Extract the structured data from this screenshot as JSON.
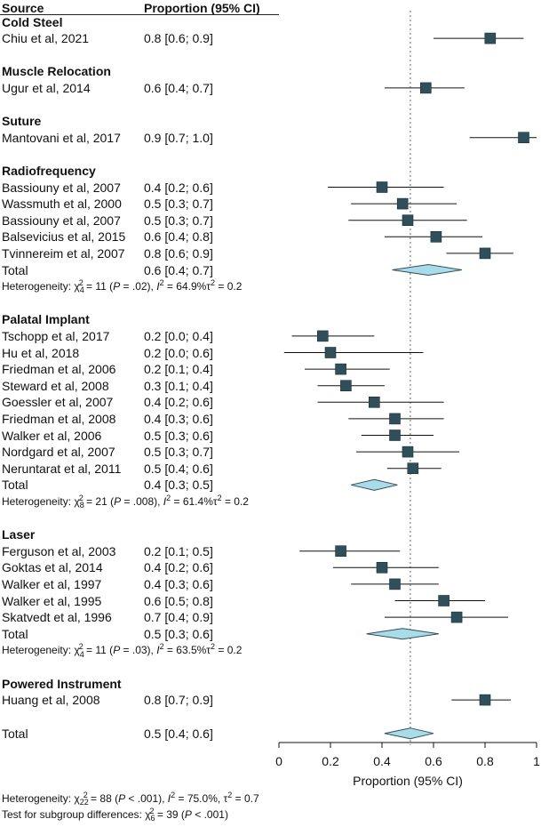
{
  "header": {
    "source_label": "Source",
    "proportion_label": "Proportion (95% CI)"
  },
  "groups": [
    {
      "name": "Cold Steel",
      "studies": [
        {
          "label": "Chiu et al, 2021",
          "ci_text": "0.8 [0.6; 0.9]",
          "est": 0.82,
          "lo": 0.6,
          "hi": 0.95
        }
      ],
      "total": null,
      "heterogeneity": null
    },
    {
      "name": "Muscle Relocation",
      "studies": [
        {
          "label": "Ugur et al, 2014",
          "ci_text": "0.6 [0.4; 0.7]",
          "est": 0.57,
          "lo": 0.41,
          "hi": 0.72
        }
      ],
      "total": null,
      "heterogeneity": null
    },
    {
      "name": "Suture",
      "studies": [
        {
          "label": "Mantovani et al, 2017",
          "ci_text": "0.9 [0.7; 1.0]",
          "est": 0.95,
          "lo": 0.74,
          "hi": 1.0
        }
      ],
      "total": null,
      "heterogeneity": null
    },
    {
      "name": "Radiofrequency",
      "studies": [
        {
          "label": "Bassiouny et al, 2007",
          "ci_text": "0.4 [0.2; 0.6]",
          "est": 0.4,
          "lo": 0.19,
          "hi": 0.64
        },
        {
          "label": "Wassmuth et al, 2000",
          "ci_text": "0.5 [0.3; 0.7]",
          "est": 0.48,
          "lo": 0.28,
          "hi": 0.69
        },
        {
          "label": "Bassiouny et al, 2007",
          "ci_text": "0.5 [0.3; 0.7]",
          "est": 0.5,
          "lo": 0.27,
          "hi": 0.73
        },
        {
          "label": "Balsevicius et al, 2015",
          "ci_text": "0.6 [0.4; 0.8]",
          "est": 0.61,
          "lo": 0.41,
          "hi": 0.79
        },
        {
          "label": "Tvinnereim et al, 2007",
          "ci_text": "0.8 [0.6; 0.9]",
          "est": 0.8,
          "lo": 0.65,
          "hi": 0.91
        }
      ],
      "total": {
        "label": "Total",
        "ci_text": "0.6 [0.4; 0.7]",
        "est": 0.58,
        "lo": 0.44,
        "hi": 0.71
      },
      "heterogeneity": {
        "prefix": "Heterogeneity: χ",
        "df": "4",
        "sq": "2",
        "stat": " = 11 (",
        "p_label": "P",
        "p_text": " = .02), ",
        "i_label": "I",
        "i_text": " = 64.9%τ",
        "tau_text": " = 0.2"
      }
    },
    {
      "name": "Palatal Implant",
      "studies": [
        {
          "label": "Tschopp et al, 2017",
          "ci_text": "0.2 [0.0; 0.4]",
          "est": 0.17,
          "lo": 0.05,
          "hi": 0.37
        },
        {
          "label": "Hu et al, 2018",
          "ci_text": "0.2 [0.0; 0.6]",
          "est": 0.2,
          "lo": 0.02,
          "hi": 0.56
        },
        {
          "label": "Friedman et al, 2006",
          "ci_text": "0.2 [0.1; 0.4]",
          "est": 0.24,
          "lo": 0.1,
          "hi": 0.43
        },
        {
          "label": "Steward et al, 2008",
          "ci_text": "0.3 [0.1; 0.4]",
          "est": 0.26,
          "lo": 0.15,
          "hi": 0.41
        },
        {
          "label": "Goessler et al, 2007",
          "ci_text": "0.4 [0.2; 0.6]",
          "est": 0.37,
          "lo": 0.15,
          "hi": 0.64
        },
        {
          "label": "Friedman et al, 2008",
          "ci_text": "0.4 [0.3; 0.6]",
          "est": 0.45,
          "lo": 0.27,
          "hi": 0.64
        },
        {
          "label": "Walker et al, 2006",
          "ci_text": "0.5 [0.3; 0.6]",
          "est": 0.45,
          "lo": 0.32,
          "hi": 0.6
        },
        {
          "label": "Nordgard et al, 2007",
          "ci_text": "0.5 [0.3; 0.7]",
          "est": 0.5,
          "lo": 0.3,
          "hi": 0.7
        },
        {
          "label": "Neruntarat et al, 2011",
          "ci_text": "0.5 [0.4; 0.6]",
          "est": 0.52,
          "lo": 0.42,
          "hi": 0.63
        }
      ],
      "total": {
        "label": "Total",
        "ci_text": "0.4 [0.3; 0.5]",
        "est": 0.37,
        "lo": 0.28,
        "hi": 0.46
      },
      "heterogeneity": {
        "prefix": "Heterogeneity: χ",
        "df": "8",
        "sq": "2",
        "stat": " = 21 (",
        "p_label": "P",
        "p_text": " = .008), ",
        "i_label": "I",
        "i_text": " = 61.4%τ",
        "tau_text": " = 0.2"
      }
    },
    {
      "name": "Laser",
      "studies": [
        {
          "label": "Ferguson et al, 2003",
          "ci_text": "0.2 [0.1; 0.5]",
          "est": 0.24,
          "lo": 0.08,
          "hi": 0.47
        },
        {
          "label": "Goktas et al, 2014",
          "ci_text": "0.4 [0.2; 0.6]",
          "est": 0.4,
          "lo": 0.21,
          "hi": 0.62
        },
        {
          "label": "Walker et al, 1997",
          "ci_text": "0.4 [0.3; 0.6]",
          "est": 0.45,
          "lo": 0.28,
          "hi": 0.62
        },
        {
          "label": "Walker et al, 1995",
          "ci_text": "0.6 [0.5; 0.8]",
          "est": 0.64,
          "lo": 0.45,
          "hi": 0.8
        },
        {
          "label": "Skatvedt et al, 1996",
          "ci_text": "0.7 [0.4; 0.9]",
          "est": 0.69,
          "lo": 0.41,
          "hi": 0.89
        }
      ],
      "total": {
        "label": "Total",
        "ci_text": "0.5 [0.3; 0.6]",
        "est": 0.48,
        "lo": 0.34,
        "hi": 0.62
      },
      "heterogeneity": {
        "prefix": "Heterogeneity: χ",
        "df": "4",
        "sq": "2",
        "stat": " = 11 (",
        "p_label": "P",
        "p_text": " = .03), ",
        "i_label": "I",
        "i_text": " = 63.5%τ",
        "tau_text": " = 0.2"
      }
    },
    {
      "name": "Powered Instrument",
      "studies": [
        {
          "label": "Huang et al, 2008",
          "ci_text": "0.8 [0.7; 0.9]",
          "est": 0.8,
          "lo": 0.67,
          "hi": 0.9
        }
      ],
      "total": null,
      "heterogeneity": null
    }
  ],
  "overall": {
    "label": "Total",
    "ci_text": "0.5 [0.4; 0.6]",
    "est": 0.51,
    "lo": 0.41,
    "hi": 0.6
  },
  "footer": {
    "overall_het": {
      "prefix": "Heterogeneity: χ",
      "df": "22",
      "sq": "2",
      "stat": " = 88 (",
      "p_label": "P",
      "p_text": " < .001), ",
      "i_label": "I",
      "i_text": " = 75.0%, τ",
      "tau_text": " = 0.7"
    },
    "subgroup_test": {
      "prefix": "Test for subgroup differences: χ",
      "df": "6",
      "sq": "2",
      "stat": " = 39 (",
      "p_label": "P",
      "p_text": " < .001)"
    }
  },
  "colors": {
    "square": "#2f4f5a",
    "diamond_fill": "#a9dbe8",
    "diamond_stroke": "#2f4f5a",
    "ci_line": "#111111",
    "ref_line": "#666666"
  },
  "chart_data": {
    "type": "forest",
    "xlabel": "Proportion (95% CI)",
    "xlim": [
      0,
      1
    ],
    "ticks": [
      0,
      0.2,
      0.4,
      0.6,
      0.8,
      1
    ],
    "tick_labels": [
      "0",
      "0.2",
      "0.4",
      "0.6",
      "0.8",
      "1"
    ],
    "reference_line": 0.51
  }
}
